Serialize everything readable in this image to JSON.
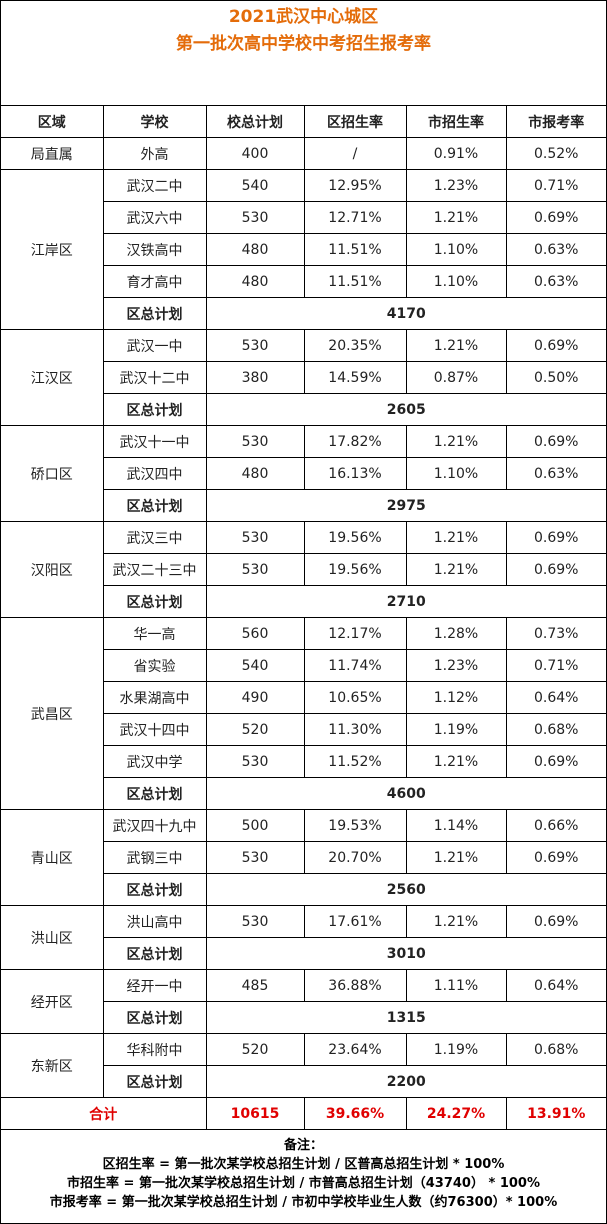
{
  "title": [
    "2021武汉中心城区",
    "第一批次高中学校中考招生报考率"
  ],
  "table": {
    "header": [
      "区域",
      "学校",
      "校总计划",
      "区招生率",
      "市招生率",
      "市报考率"
    ],
    "districts": [
      {
        "name": "局直属",
        "schools": [
          [
            "外高",
            "400",
            "/",
            "0.91%",
            "0.52%"
          ]
        ]
      },
      {
        "name": "江岸区",
        "schools": [
          [
            "武汉二中",
            "540",
            "12.95%",
            "1.23%",
            "0.71%"
          ],
          [
            "武汉六中",
            "530",
            "12.71%",
            "1.21%",
            "0.69%"
          ],
          [
            "汉铁高中",
            "480",
            "11.51%",
            "1.10%",
            "0.63%"
          ],
          [
            "育才高中",
            "480",
            "11.51%",
            "1.10%",
            "0.63%"
          ]
        ],
        "subtotal_label": "区总计划",
        "subtotal": "4170"
      },
      {
        "name": "江汉区",
        "schools": [
          [
            "武汉一中",
            "530",
            "20.35%",
            "1.21%",
            "0.69%"
          ],
          [
            "武汉十二中",
            "380",
            "14.59%",
            "0.87%",
            "0.50%"
          ]
        ],
        "subtotal_label": "区总计划",
        "subtotal": "2605"
      },
      {
        "name": "硚口区",
        "schools": [
          [
            "武汉十一中",
            "530",
            "17.82%",
            "1.21%",
            "0.69%"
          ],
          [
            "武汉四中",
            "480",
            "16.13%",
            "1.10%",
            "0.63%"
          ]
        ],
        "subtotal_label": "区总计划",
        "subtotal": "2975"
      },
      {
        "name": "汉阳区",
        "schools": [
          [
            "武汉三中",
            "530",
            "19.56%",
            "1.21%",
            "0.69%"
          ],
          [
            "武汉二十三中",
            "530",
            "19.56%",
            "1.21%",
            "0.69%"
          ]
        ],
        "subtotal_label": "区总计划",
        "subtotal": "2710"
      },
      {
        "name": "武昌区",
        "schools": [
          [
            "华一高",
            "560",
            "12.17%",
            "1.28%",
            "0.73%"
          ],
          [
            "省实验",
            "540",
            "11.74%",
            "1.23%",
            "0.71%"
          ],
          [
            "水果湖高中",
            "490",
            "10.65%",
            "1.12%",
            "0.64%"
          ],
          [
            "武汉十四中",
            "520",
            "11.30%",
            "1.19%",
            "0.68%"
          ],
          [
            "武汉中学",
            "530",
            "11.52%",
            "1.21%",
            "0.69%"
          ]
        ],
        "subtotal_label": "区总计划",
        "subtotal": "4600"
      },
      {
        "name": "青山区",
        "schools": [
          [
            "武汉四十九中",
            "500",
            "19.53%",
            "1.14%",
            "0.66%"
          ],
          [
            "武钢三中",
            "530",
            "20.70%",
            "1.21%",
            "0.69%"
          ]
        ],
        "subtotal_label": "区总计划",
        "subtotal": "2560"
      },
      {
        "name": "洪山区",
        "schools": [
          [
            "洪山高中",
            "530",
            "17.61%",
            "1.21%",
            "0.69%"
          ]
        ],
        "subtotal_label": "区总计划",
        "subtotal": "3010"
      },
      {
        "name": "经开区",
        "schools": [
          [
            "经开一中",
            "485",
            "36.88%",
            "1.11%",
            "0.64%"
          ]
        ],
        "subtotal_label": "区总计划",
        "subtotal": "1315"
      },
      {
        "name": "东新区",
        "schools": [
          [
            "华科附中",
            "520",
            "23.64%",
            "1.19%",
            "0.68%"
          ]
        ],
        "subtotal_label": "区总计划",
        "subtotal": "2200"
      }
    ],
    "total": [
      "合计",
      "10615",
      "39.66%",
      "24.27%",
      "13.91%"
    ]
  },
  "notes": {
    "title": "备注：",
    "lines": [
      "区招生率 = 第一批次某学校总招生计划 / 区普高总招生计划 * 100%",
      "市招生率 = 第一批次某学校总招生计划 / 市普高总招生计划（43740） * 100%",
      "市报考率 = 第一批次某学校总招生计划 / 市初中学校毕业生人数（约76300）* 100%"
    ]
  }
}
